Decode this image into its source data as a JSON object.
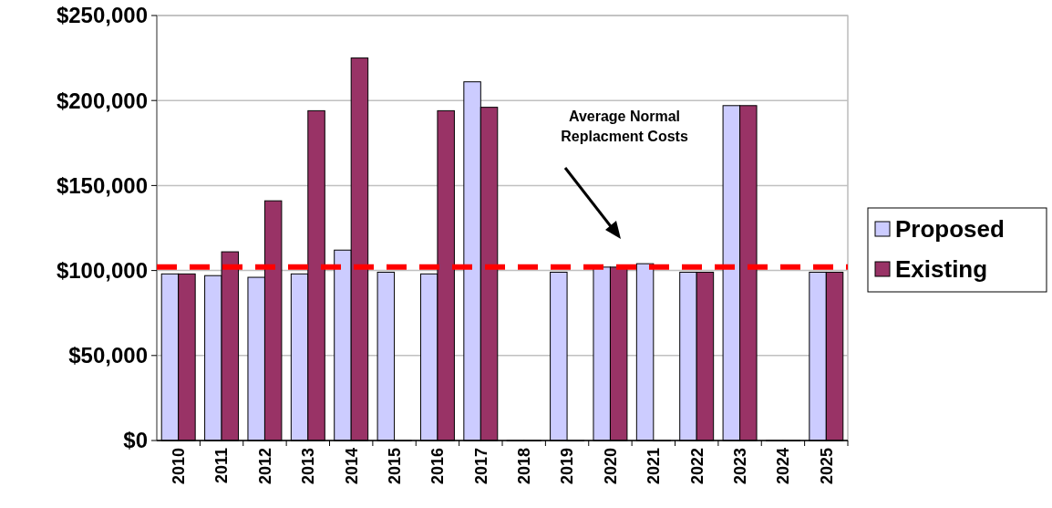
{
  "chart_data": {
    "type": "bar",
    "categories": [
      "2010",
      "2011",
      "2012",
      "2013",
      "2014",
      "2015",
      "2016",
      "2017",
      "2018",
      "2019",
      "2020",
      "2021",
      "2022",
      "2023",
      "2024",
      "2025"
    ],
    "series": [
      {
        "name": "Proposed",
        "color": "#ccccff",
        "values": [
          98000,
          97000,
          96000,
          98000,
          112000,
          99000,
          98000,
          211000,
          0,
          99000,
          102000,
          104000,
          99000,
          197000,
          0,
          99000
        ]
      },
      {
        "name": "Existing",
        "color": "#993366",
        "values": [
          98000,
          111000,
          141000,
          194000,
          225000,
          0,
          194000,
          196000,
          0,
          0,
          102000,
          0,
          99000,
          197000,
          0,
          99000
        ]
      }
    ],
    "ylim": [
      0,
      250000
    ],
    "yticks": [
      {
        "value": 0,
        "label": "$0"
      },
      {
        "value": 50000,
        "label": "$50,000"
      },
      {
        "value": 100000,
        "label": "$100,000"
      },
      {
        "value": 150000,
        "label": "$150,000"
      },
      {
        "value": 200000,
        "label": "$200,000"
      },
      {
        "value": 250000,
        "label": "$250,000"
      }
    ],
    "grid": "y",
    "legend": "right",
    "annotations": [
      "Average Normal Replacment Costs"
    ],
    "ref_lines": [
      {
        "axis": "y",
        "value": 102000,
        "color": "#ff0000",
        "line_style": "dashed"
      }
    ]
  }
}
